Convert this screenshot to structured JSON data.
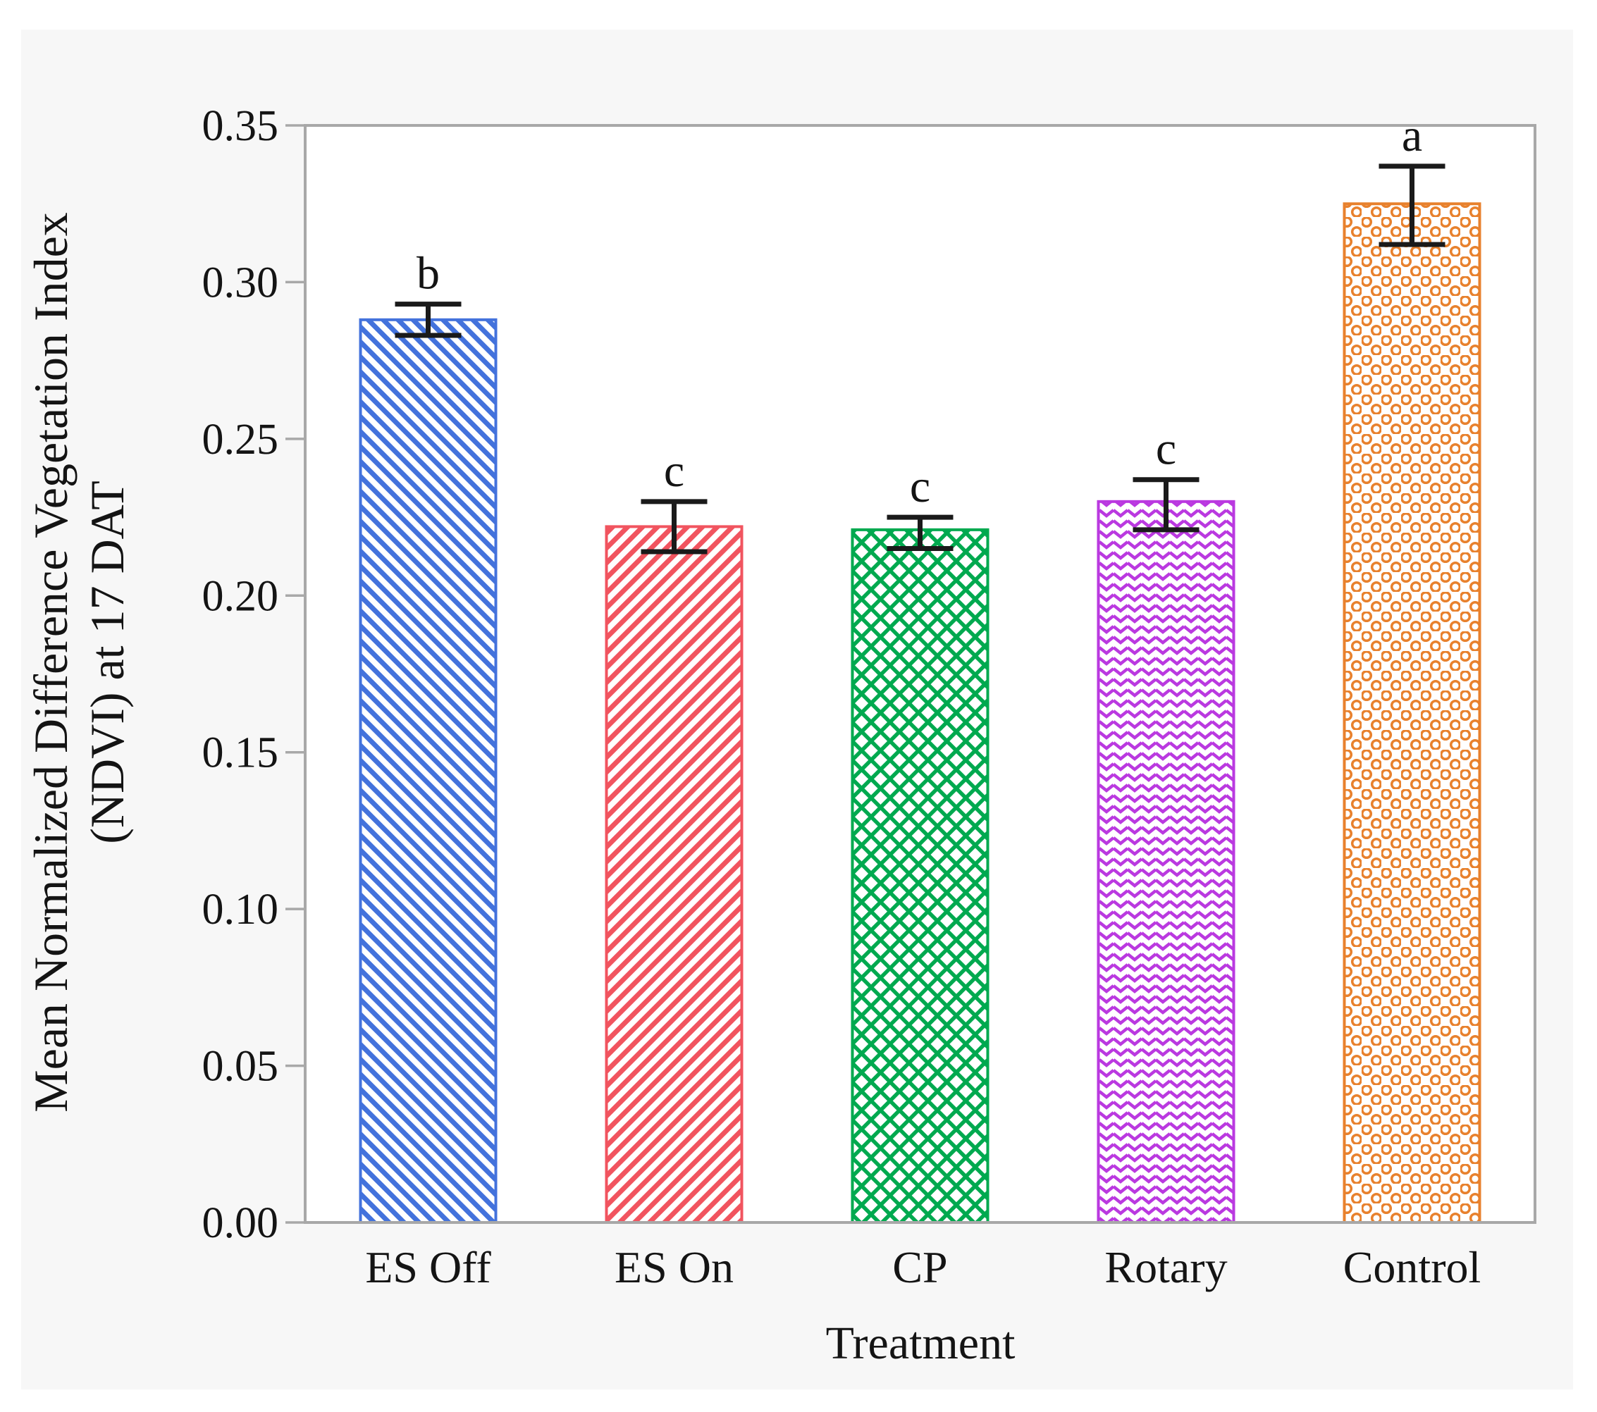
{
  "chart_data": {
    "type": "bar",
    "title": "",
    "categories": [
      "ES Off",
      "ES On",
      "CP",
      "Rotary",
      "Control"
    ],
    "values": [
      0.288,
      0.222,
      0.221,
      0.23,
      0.325
    ],
    "err_upper": [
      0.293,
      0.23,
      0.225,
      0.237,
      0.337
    ],
    "err_lower": [
      0.283,
      0.214,
      0.215,
      0.221,
      0.312
    ],
    "letters": [
      "b",
      "c",
      "c",
      "c",
      "a"
    ],
    "bar_styles": [
      {
        "color": "#4372DC",
        "pattern": "diag-down",
        "name": "blue-diagonal-hatch"
      },
      {
        "color": "#F1545F",
        "pattern": "diag-up",
        "name": "red-diagonal-hatch"
      },
      {
        "color": "#00A94F",
        "pattern": "crosshatch",
        "name": "green-crosshatch"
      },
      {
        "color": "#BA39E0",
        "pattern": "zigzag",
        "name": "purple-zigzag"
      },
      {
        "color": "#E8812D",
        "pattern": "rings",
        "name": "orange-circles"
      }
    ],
    "xlabel": "Treatment",
    "ylabel_line1": "Mean Normalized Difference Vegetation Index",
    "ylabel_line2": "(NDVI) at 17 DAT",
    "ylim": [
      0.0,
      0.35
    ],
    "ytick_step": 0.05,
    "ytick_labels": [
      "0.00",
      "0.05",
      "0.10",
      "0.15",
      "0.20",
      "0.25",
      "0.30",
      "0.35"
    ],
    "grid": false,
    "legend": "none",
    "error_bar_color": "#1a1a1a",
    "frame_color": "#A8A8A8",
    "panel_color": "#F7F7F7",
    "plot_bg_color": "#FFFFFF",
    "text_color": "#141414"
  }
}
